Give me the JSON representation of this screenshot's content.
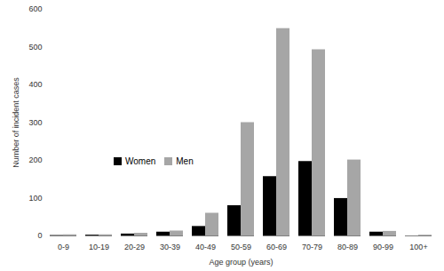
{
  "chart_data": {
    "type": "bar",
    "x_label": "Age group (years)",
    "y_label": "Number of incident cases",
    "categories": [
      "0-9",
      "10-19",
      "20-29",
      "30-39",
      "40-49",
      "50-59",
      "60-69",
      "70-79",
      "80-89",
      "90-99",
      "100+"
    ],
    "series": [
      {
        "name": "Women",
        "color": "#000000",
        "values": [
          1,
          2,
          5,
          10,
          25,
          80,
          157,
          197,
          99,
          10,
          0
        ]
      },
      {
        "name": "Men",
        "color": "#a6a6a6",
        "values": [
          3,
          3,
          7,
          13,
          60,
          300,
          549,
          493,
          201,
          12,
          2
        ]
      }
    ],
    "ylim": [
      0,
      600
    ],
    "yticks": [
      0,
      100,
      200,
      300,
      400,
      500,
      600
    ],
    "grid": false,
    "legend": "left"
  }
}
